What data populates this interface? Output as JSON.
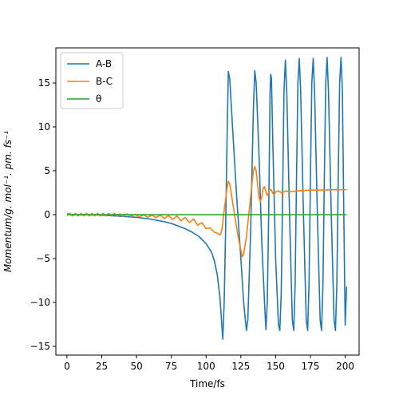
{
  "chart_data": {
    "type": "line",
    "xlabel": "Time/fs",
    "ylabel": "Momentum/g. mol⁻¹. pm. fs⁻¹",
    "xlim": [
      -8,
      210
    ],
    "ylim": [
      -16,
      19
    ],
    "xticks": [
      0,
      25,
      50,
      75,
      100,
      125,
      150,
      175,
      200
    ],
    "yticks": [
      -15,
      -10,
      -5,
      0,
      5,
      10,
      15
    ],
    "grid": false,
    "legend_position": "top-left",
    "series": [
      {
        "name": "A-B",
        "color": "#1f77b4",
        "points": [
          [
            0,
            0
          ],
          [
            10,
            0
          ],
          [
            20,
            0
          ],
          [
            30,
            -0.1
          ],
          [
            40,
            -0.2
          ],
          [
            50,
            -0.3
          ],
          [
            60,
            -0.5
          ],
          [
            70,
            -0.8
          ],
          [
            75,
            -1.0
          ],
          [
            80,
            -1.3
          ],
          [
            85,
            -1.6
          ],
          [
            90,
            -2.0
          ],
          [
            95,
            -2.5
          ],
          [
            100,
            -3.3
          ],
          [
            104,
            -4.3
          ],
          [
            106,
            -5.3
          ],
          [
            108,
            -6.8
          ],
          [
            110,
            -9.5
          ],
          [
            112,
            -14.2
          ],
          [
            113,
            -10.0
          ],
          [
            114,
            -2.0
          ],
          [
            115,
            8.0
          ],
          [
            116,
            16.3
          ],
          [
            117,
            15.5
          ],
          [
            119,
            10.0
          ],
          [
            122,
            2.0
          ],
          [
            125,
            -5.0
          ],
          [
            127,
            -10.0
          ],
          [
            129,
            -13.2
          ],
          [
            130,
            -12.0
          ],
          [
            132,
            -2.0
          ],
          [
            134,
            12.0
          ],
          [
            135,
            16.4
          ],
          [
            136,
            15.0
          ],
          [
            138,
            7.0
          ],
          [
            140,
            -3.0
          ],
          [
            142,
            -10.0
          ],
          [
            143,
            -13.1
          ],
          [
            144,
            -10.0
          ],
          [
            145,
            0.0
          ],
          [
            146,
            14.0
          ],
          [
            146.5,
            16.0
          ],
          [
            147,
            15.5
          ],
          [
            148,
            8.0
          ],
          [
            150,
            -5.0
          ],
          [
            152,
            -12.5
          ],
          [
            153,
            -13.2
          ],
          [
            154,
            -9.0
          ],
          [
            155,
            2.0
          ],
          [
            156,
            14.0
          ],
          [
            157,
            17.6
          ],
          [
            158,
            14.0
          ],
          [
            160,
            0.0
          ],
          [
            162,
            -12.0
          ],
          [
            163,
            -13.2
          ],
          [
            164,
            -8.0
          ],
          [
            165,
            4.0
          ],
          [
            166,
            15.0
          ],
          [
            167,
            17.8
          ],
          [
            168,
            14.0
          ],
          [
            170,
            0.0
          ],
          [
            172,
            -12.0
          ],
          [
            173,
            -13.2
          ],
          [
            174,
            -8.0
          ],
          [
            175,
            4.0
          ],
          [
            176,
            15.0
          ],
          [
            177,
            17.8
          ],
          [
            178,
            14.0
          ],
          [
            180,
            0.0
          ],
          [
            182,
            -12.0
          ],
          [
            183,
            -13.2
          ],
          [
            184,
            -8.0
          ],
          [
            185,
            4.0
          ],
          [
            186,
            15.0
          ],
          [
            187,
            17.9
          ],
          [
            188,
            14.0
          ],
          [
            190,
            0.0
          ],
          [
            192,
            -12.0
          ],
          [
            193,
            -13.2
          ],
          [
            194,
            -8.0
          ],
          [
            195,
            4.0
          ],
          [
            196,
            15.0
          ],
          [
            197,
            17.9
          ],
          [
            198,
            14.0
          ],
          [
            199,
            0.0
          ],
          [
            200,
            -12.6
          ],
          [
            201,
            -8.2
          ]
        ]
      },
      {
        "name": "B-C",
        "color": "#ff7f0e",
        "points": [
          [
            0,
            0.1
          ],
          [
            2,
            0.15
          ],
          [
            4,
            -0.15
          ],
          [
            6,
            0.15
          ],
          [
            8,
            -0.15
          ],
          [
            10,
            0.15
          ],
          [
            12,
            -0.15
          ],
          [
            14,
            0.15
          ],
          [
            16,
            -0.15
          ],
          [
            18,
            0.15
          ],
          [
            20,
            -0.15
          ],
          [
            22,
            0.15
          ],
          [
            24,
            -0.15
          ],
          [
            26,
            0.15
          ],
          [
            28,
            -0.15
          ],
          [
            30,
            0.15
          ],
          [
            32,
            -0.15
          ],
          [
            34,
            0.15
          ],
          [
            36,
            -0.15
          ],
          [
            38,
            0.1
          ],
          [
            40,
            -0.2
          ],
          [
            43,
            0.1
          ],
          [
            46,
            -0.2
          ],
          [
            49,
            0.05
          ],
          [
            52,
            -0.25
          ],
          [
            55,
            0.0
          ],
          [
            58,
            -0.3
          ],
          [
            61,
            -0.05
          ],
          [
            64,
            -0.35
          ],
          [
            67,
            -0.05
          ],
          [
            70,
            -0.45
          ],
          [
            73,
            -0.1
          ],
          [
            76,
            -0.55
          ],
          [
            79,
            -0.15
          ],
          [
            82,
            -0.7
          ],
          [
            85,
            -0.3
          ],
          [
            88,
            -0.9
          ],
          [
            91,
            -0.5
          ],
          [
            94,
            -1.2
          ],
          [
            97,
            -0.9
          ],
          [
            100,
            -1.6
          ],
          [
            103,
            -1.5
          ],
          [
            106,
            -2.0
          ],
          [
            108,
            -2.1
          ],
          [
            110,
            -2.3
          ],
          [
            111,
            -2.0
          ],
          [
            112,
            -1.0
          ],
          [
            113,
            0.5
          ],
          [
            115,
            3.0
          ],
          [
            116,
            3.8
          ],
          [
            117,
            3.5
          ],
          [
            119,
            1.5
          ],
          [
            121,
            -0.5
          ],
          [
            123,
            -2.5
          ],
          [
            125,
            -4.0
          ],
          [
            126,
            -4.8
          ],
          [
            127,
            -4.5
          ],
          [
            129,
            -2.5
          ],
          [
            131,
            0.5
          ],
          [
            133,
            3.5
          ],
          [
            134,
            5.0
          ],
          [
            135,
            5.5
          ],
          [
            136,
            5.0
          ],
          [
            137,
            3.5
          ],
          [
            138,
            2.0
          ],
          [
            139,
            1.5
          ],
          [
            140,
            2.0
          ],
          [
            141,
            3.0
          ],
          [
            142,
            3.2
          ],
          [
            143,
            2.6
          ],
          [
            144,
            2.2
          ],
          [
            145,
            2.5
          ],
          [
            146,
            2.9
          ],
          [
            147,
            2.8
          ],
          [
            148,
            2.4
          ],
          [
            149,
            2.3
          ],
          [
            150,
            2.6
          ],
          [
            152,
            2.7
          ],
          [
            154,
            2.5
          ],
          [
            156,
            2.6
          ],
          [
            158,
            2.7
          ],
          [
            160,
            2.6
          ],
          [
            165,
            2.7
          ],
          [
            170,
            2.75
          ],
          [
            175,
            2.8
          ],
          [
            180,
            2.8
          ],
          [
            185,
            2.8
          ],
          [
            190,
            2.85
          ],
          [
            195,
            2.85
          ],
          [
            200,
            2.85
          ],
          [
            201,
            2.85
          ]
        ]
      },
      {
        "name": "θ",
        "color": "#2ca02c",
        "points": [
          [
            0,
            0
          ],
          [
            201,
            0
          ]
        ]
      }
    ]
  }
}
